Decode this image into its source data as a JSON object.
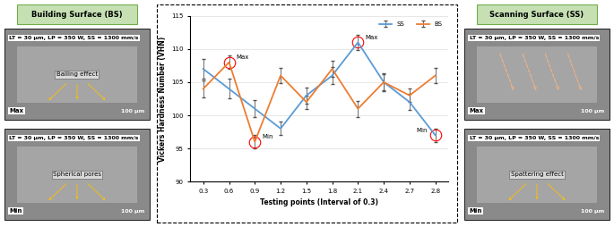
{
  "chart_data": {
    "type": "line",
    "xlabel": "Testing points (Interval of 0.3)",
    "ylabel": "Vickers Hardness Number (VHN)",
    "categories": [
      "0.3",
      "0.6",
      "0.9",
      "1.2",
      "1.5",
      "1.8",
      "2.1",
      "2.4",
      "2.7",
      "2.8"
    ],
    "series": [
      {
        "name": "SS",
        "color": "#5b9bd5",
        "values": [
          107,
          104,
          101,
          98,
          103,
          106,
          111,
          105,
          102,
          97
        ],
        "errors": [
          1.5,
          1.5,
          1.3,
          1.0,
          1.2,
          1.3,
          1.2,
          1.3,
          1.2,
          1.0
        ]
      },
      {
        "name": "BS",
        "color": "#ed7d31",
        "values": [
          104,
          108,
          96,
          106,
          102,
          107,
          101,
          105,
          103,
          106
        ],
        "errors": [
          1.3,
          1.0,
          1.0,
          1.2,
          1.0,
          1.2,
          1.2,
          1.2,
          1.0,
          1.2
        ]
      }
    ],
    "annotations": [
      {
        "text": "Max",
        "category": "0.6",
        "y": 108
      },
      {
        "text": "Min",
        "category": "0.9",
        "y": 96
      },
      {
        "text": "Max",
        "category": "2.1",
        "y": 111
      },
      {
        "text": "Min",
        "category": "2.8",
        "y": 97
      }
    ],
    "ylim": [
      90,
      115
    ],
    "yticks": [
      90,
      95,
      100,
      105,
      110,
      115
    ],
    "grid": true,
    "legend": "upper right"
  },
  "panels": [
    {
      "header": "Building Surface (BS)",
      "images": [
        {
          "params": "LT = 30 µm, LP = 350 W, SS = 1300 mm/s",
          "feature": "Balling effect",
          "rank": "Max",
          "scale": "100 µm"
        },
        {
          "params": "LT = 30 µm, LP = 350 W, SS = 1300 mm/s",
          "feature": "Spherical pores",
          "rank": "Min",
          "scale": "100 µm"
        }
      ]
    },
    {
      "header": "Scanning Surface (SS)",
      "images": [
        {
          "params": "LT = 30 µm, LP = 350 W, SS = 1300 mm/s",
          "rank": "Max",
          "scale": "100 µm"
        },
        {
          "params": "LT = 30 µm, LP = 350 W, SS = 1300 mm/s",
          "feature": "Spattering effect",
          "rank": "Min",
          "scale": "100 µm"
        }
      ]
    }
  ]
}
